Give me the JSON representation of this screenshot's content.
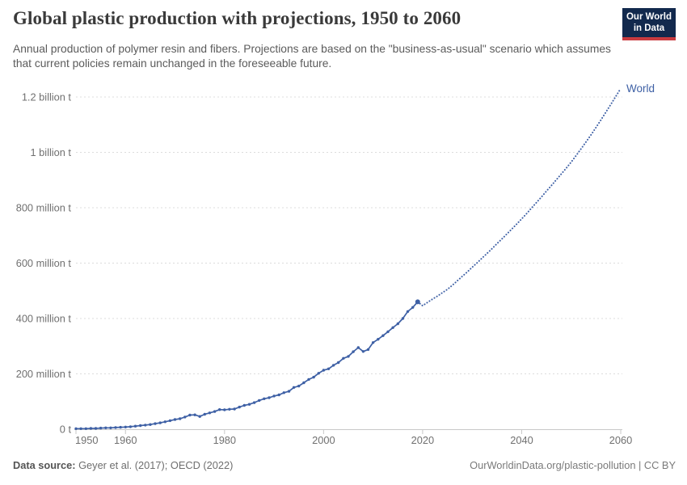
{
  "header": {
    "title": "Global plastic production with projections, 1950 to 2060",
    "subtitle": "Annual production of polymer resin and fibers. Projections are based on the \"business-as-usual\" scenario which assumes that current policies remain unchanged in the foreseeable future.",
    "logo": {
      "line1": "Our World",
      "line2": "in Data",
      "bg_color": "#12294d",
      "stripe_color": "#c93b3f"
    }
  },
  "footer": {
    "source_label": "Data source:",
    "source_value": "Geyer et al. (2017); OECD (2022)",
    "attribution": "OurWorldinData.org/plastic-pollution | CC BY"
  },
  "chart_data": {
    "type": "line",
    "title": "Global plastic production with projections, 1950 to 2060",
    "unit": "million tonnes",
    "xlabel": "",
    "ylabel": "",
    "xlim": [
      1950,
      2060
    ],
    "ylim": [
      0,
      1260
    ],
    "grid": "horizontal-dashed",
    "legend_position": "end-of-line-label",
    "end_label": "World",
    "color": "#3e60a5",
    "x_ticks": [
      1950,
      1960,
      1980,
      2000,
      2020,
      2040,
      2060
    ],
    "y_ticks": [
      {
        "value": 0,
        "label": "0 t"
      },
      {
        "value": 200,
        "label": "200 million t"
      },
      {
        "value": 400,
        "label": "400 million t"
      },
      {
        "value": 600,
        "label": "600 million t"
      },
      {
        "value": 800,
        "label": "800 million t"
      },
      {
        "value": 1000,
        "label": "1 billion t"
      },
      {
        "value": 1200,
        "label": "1.2 billion t"
      }
    ],
    "series": [
      {
        "name": "World — historical",
        "style": "solid-with-markers",
        "x": [
          1950,
          1951,
          1952,
          1953,
          1954,
          1955,
          1956,
          1957,
          1958,
          1959,
          1960,
          1961,
          1962,
          1963,
          1964,
          1965,
          1966,
          1967,
          1968,
          1969,
          1970,
          1971,
          1972,
          1973,
          1974,
          1975,
          1976,
          1977,
          1978,
          1979,
          1980,
          1981,
          1982,
          1983,
          1984,
          1985,
          1986,
          1987,
          1988,
          1989,
          1990,
          1991,
          1992,
          1993,
          1994,
          1995,
          1996,
          1997,
          1998,
          1999,
          2000,
          2001,
          2002,
          2003,
          2004,
          2005,
          2006,
          2007,
          2008,
          2009,
          2010,
          2011,
          2012,
          2013,
          2014,
          2015,
          2016,
          2017,
          2018,
          2019
        ],
        "values": [
          2,
          2,
          2,
          3,
          3,
          4,
          5,
          5,
          6,
          7,
          8,
          9,
          11,
          13,
          15,
          17,
          20,
          23,
          27,
          31,
          35,
          38,
          44,
          51,
          52,
          46,
          54,
          59,
          64,
          71,
          70,
          72,
          73,
          80,
          86,
          90,
          96,
          104,
          110,
          114,
          120,
          124,
          132,
          137,
          151,
          156,
          168,
          180,
          188,
          202,
          213,
          218,
          231,
          241,
          256,
          263,
          280,
          295,
          281,
          288,
          313,
          325,
          338,
          352,
          367,
          381,
          400,
          425,
          440,
          460
        ]
      },
      {
        "name": "World — projection (business-as-usual)",
        "style": "dotted",
        "x": [
          2019,
          2020,
          2021,
          2022,
          2023,
          2024,
          2025,
          2026,
          2027,
          2028,
          2029,
          2030,
          2031,
          2032,
          2033,
          2034,
          2035,
          2036,
          2037,
          2038,
          2039,
          2040,
          2041,
          2042,
          2043,
          2044,
          2045,
          2046,
          2047,
          2048,
          2049,
          2050,
          2051,
          2052,
          2053,
          2054,
          2055,
          2056,
          2057,
          2058,
          2059,
          2060
        ],
        "values": [
          460,
          446,
          458,
          470,
          481,
          493,
          505,
          520,
          536,
          552,
          568,
          585,
          601,
          618,
          635,
          652,
          670,
          687,
          705,
          723,
          741,
          760,
          779,
          799,
          819,
          839,
          860,
          880,
          901,
          922,
          943,
          965,
          989,
          1013,
          1038,
          1063,
          1090,
          1117,
          1145,
          1173,
          1202,
          1231
        ]
      }
    ]
  }
}
